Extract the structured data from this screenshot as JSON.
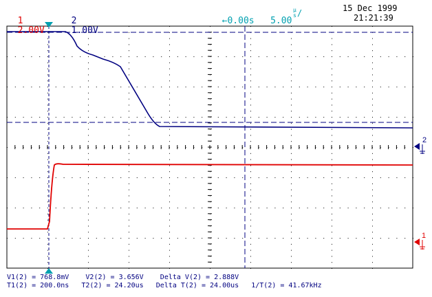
{
  "header": {
    "ch1": {
      "number": "1",
      "scale": "2.00V",
      "color": "#e00000"
    },
    "ch2": {
      "number": "2",
      "scale": "1.00V",
      "color": "#000080"
    },
    "trigger": {
      "arrow": "←",
      "position": "0.00s"
    },
    "timebase": {
      "value": "5.00",
      "unit_top": "µ",
      "unit_bottom": "s",
      "suffix": "/"
    },
    "date": "15 Dec 1999",
    "time": "21:21:39",
    "accent_color": "#00a0b0"
  },
  "markers": {
    "ch2_ref": "2",
    "ch1_ref": "1"
  },
  "measurements": {
    "row1": [
      {
        "label": "V1(2) = 768.8mV"
      },
      {
        "label": "V2(2) = 3.656V"
      },
      {
        "label": "Delta V(2) = 2.888V"
      }
    ],
    "row2": [
      {
        "label": "T1(2) = 200.0ns"
      },
      {
        "label": "T2(2) = 24.20us"
      },
      {
        "label": "Delta T(2) = 24.00us"
      },
      {
        "label": "1/T(2) = 41.67kHz"
      }
    ]
  },
  "chart_data": {
    "type": "line",
    "grid": true,
    "series": [
      {
        "name": "2",
        "color": "#000080"
      },
      {
        "name": "1",
        "color": "#e00000"
      }
    ]
  }
}
